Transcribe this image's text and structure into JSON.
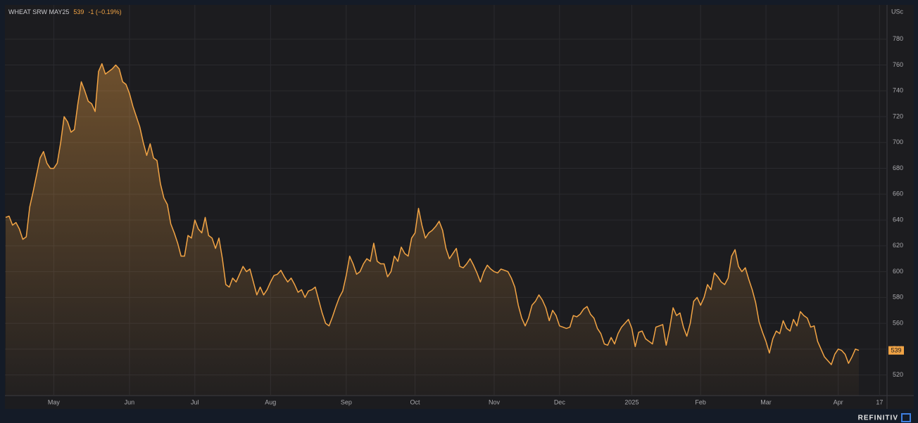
{
  "chart_data": {
    "type": "line",
    "title": "WHEAT SRW MAY25",
    "last": 539,
    "change": "-1 (−0.19%)",
    "y_unit": "USc",
    "brand": "REFINITIV",
    "color": "#f2a445",
    "grid": true,
    "categories": [
      null,
      null,
      null,
      null,
      null,
      null,
      null,
      null,
      null,
      null,
      null,
      null,
      null,
      null,
      "May",
      null,
      null,
      null,
      null,
      null,
      null,
      null,
      null,
      null,
      null,
      null,
      null,
      null,
      null,
      null,
      null,
      null,
      null,
      null,
      null,
      null,
      "Jun",
      null,
      null,
      null,
      null,
      null,
      null,
      null,
      null,
      null,
      null,
      null,
      null,
      null,
      null,
      null,
      null,
      null,
      null,
      "Jul",
      null,
      null,
      null,
      null,
      null,
      null,
      null,
      null,
      null,
      null,
      null,
      null,
      null,
      null,
      null,
      null,
      null,
      null,
      null,
      null,
      null,
      "Aug",
      null,
      null,
      null,
      null,
      null,
      null,
      null,
      null,
      null,
      null,
      null,
      null,
      null,
      null,
      null,
      null,
      null,
      null,
      null,
      null,
      null,
      "Sep",
      null,
      null,
      null,
      null,
      null,
      null,
      null,
      null,
      null,
      null,
      null,
      null,
      null,
      null,
      null,
      null,
      null,
      null,
      null,
      "Oct",
      null,
      null,
      null,
      null,
      null,
      null,
      null,
      null,
      null,
      null,
      null,
      null,
      null,
      null,
      null,
      null,
      null,
      null,
      null,
      null,
      null,
      null,
      "Nov",
      null,
      null,
      null,
      null,
      null,
      null,
      null,
      null,
      null,
      null,
      null,
      null,
      null,
      null,
      null,
      null,
      null,
      null,
      "Dec",
      null,
      null,
      null,
      null,
      null,
      null,
      null,
      null,
      null,
      null,
      null,
      null,
      null,
      null,
      null,
      null,
      null,
      null,
      null,
      null,
      "2025",
      null,
      null,
      null,
      null,
      null,
      null,
      null,
      null,
      null,
      null,
      null,
      null,
      null,
      null,
      null,
      null,
      null,
      null,
      null,
      "Feb",
      null,
      null,
      null,
      null,
      null,
      null,
      null,
      null,
      null,
      null,
      null,
      null,
      null,
      null,
      null,
      null,
      null,
      null,
      "Mar",
      null,
      null,
      null,
      null,
      null,
      null,
      null,
      null,
      null,
      null,
      null,
      null,
      null,
      null,
      null,
      null,
      null,
      null,
      null,
      null,
      "Apr",
      null,
      null,
      null,
      null,
      null,
      null,
      null,
      null,
      null,
      null,
      null,
      "17"
    ],
    "values": [
      642,
      643,
      636,
      638,
      633,
      625,
      627,
      650,
      662,
      675,
      688,
      693,
      684,
      680,
      680,
      684,
      700,
      720,
      716,
      708,
      710,
      730,
      747,
      740,
      732,
      730,
      724,
      755,
      761,
      753,
      755,
      757,
      760,
      757,
      747,
      745,
      738,
      728,
      720,
      712,
      700,
      690,
      699,
      688,
      686,
      668,
      657,
      652,
      637,
      630,
      622,
      612,
      612,
      628,
      626,
      640,
      633,
      630,
      642,
      628,
      626,
      618,
      626,
      610,
      590,
      588,
      595,
      592,
      598,
      604,
      600,
      602,
      592,
      582,
      588,
      582,
      586,
      592,
      597,
      598,
      601,
      596,
      592,
      595,
      590,
      584,
      586,
      580,
      585,
      586,
      588,
      578,
      568,
      560,
      558,
      565,
      573,
      580,
      585,
      597,
      612,
      606,
      598,
      600,
      606,
      610,
      608,
      622,
      608,
      606,
      606,
      596,
      600,
      612,
      608,
      619,
      614,
      612,
      626,
      630,
      649,
      636,
      626,
      630,
      632,
      635,
      639,
      632,
      618,
      610,
      614,
      618,
      604,
      603,
      606,
      610,
      605,
      599,
      592,
      600,
      605,
      602,
      600,
      599,
      602,
      601,
      600,
      595,
      588,
      574,
      564,
      558,
      564,
      574,
      577,
      582,
      578,
      572,
      562,
      570,
      566,
      558,
      557,
      556,
      557,
      566,
      565,
      567,
      571,
      573,
      567,
      564,
      556,
      552,
      544,
      543,
      549,
      544,
      552,
      557,
      560,
      563,
      556,
      542,
      553,
      554,
      548,
      546,
      544,
      557,
      558,
      559,
      543,
      556,
      572,
      566,
      568,
      557,
      550,
      560,
      577,
      580,
      574,
      580,
      590,
      586,
      599,
      596,
      592,
      590,
      595,
      612,
      617,
      604,
      600,
      603,
      594,
      586,
      576,
      561,
      553,
      546,
      537,
      548,
      554,
      552,
      562,
      556,
      554,
      563,
      558,
      569,
      566,
      564,
      557,
      558,
      546,
      540,
      534,
      531,
      528,
      536,
      540,
      539,
      536,
      529,
      534,
      540,
      539,
      null,
      null,
      null,
      null,
      null,
      null
    ],
    "ylim": [
      504,
      806
    ],
    "yticks": [
      520,
      540,
      560,
      580,
      600,
      620,
      640,
      660,
      680,
      700,
      720,
      740,
      760,
      780
    ]
  }
}
